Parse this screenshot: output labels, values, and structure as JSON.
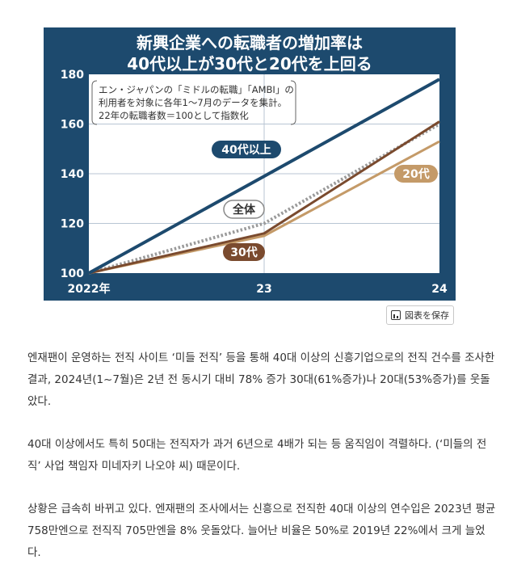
{
  "figure": {
    "title_line1": "新興企業への転職者の増加率は",
    "title_line2": "40代以上が30代と20代を上回る",
    "note_lines": [
      "エン・ジャパンの「ミドルの転職」「AMBI」の",
      "利用者を対象に各年1～7月のデータを集計。",
      "22年の転職者数＝100として指数化"
    ],
    "save_label": "図表を保存",
    "save_icon": "chart-icon"
  },
  "chart_data": {
    "type": "line",
    "categories": [
      "2022年",
      "23",
      "24"
    ],
    "ylim": [
      100,
      180
    ],
    "yticks": [
      100,
      120,
      140,
      160,
      180
    ],
    "grid": true,
    "series": [
      {
        "name": "40代以上",
        "values": [
          100,
          139,
          178
        ],
        "color": "#1d4a6e",
        "style": "solid"
      },
      {
        "name": "全体",
        "values": [
          100,
          120,
          160
        ],
        "color": "#9a9a9a",
        "style": "dotted"
      },
      {
        "name": "30代",
        "values": [
          100,
          116,
          161
        ],
        "color": "#7a4a2e",
        "style": "solid"
      },
      {
        "name": "20代",
        "values": [
          100,
          115,
          153
        ],
        "color": "#c49a68",
        "style": "solid"
      }
    ]
  },
  "article": {
    "paragraphs": [
      "엔재팬이 운영하는 전직 사이트 ‘미들 전직’ 등을 통해 40대 이상의 신흥기업으로의 전직 건수를 조사한 결과, 2024년(1~7월)은 2년 전 동시기 대비 78% 증가 30대(61%증가)나 20대(53%증가)를 웃돌았다.",
      "40대 이상에서도 특히 50대는 전직자가 과거 6년으로 4배가 되는 등 움직임이 격렬하다. (‘미들의 전직’ 사업 책임자 미네자키 나오야 씨) 때문이다.",
      "상황은 급속히 바뀌고 있다. 엔재팬의 조사에서는 신흥으로 전직한 40대 이상의 연수입은 2023년 평균 758만엔으로 전직직 705만엔을 8% 웃돌았다. 늘어난 비율은 50%로 2019년 22%에서 크게 늘었다."
    ]
  }
}
